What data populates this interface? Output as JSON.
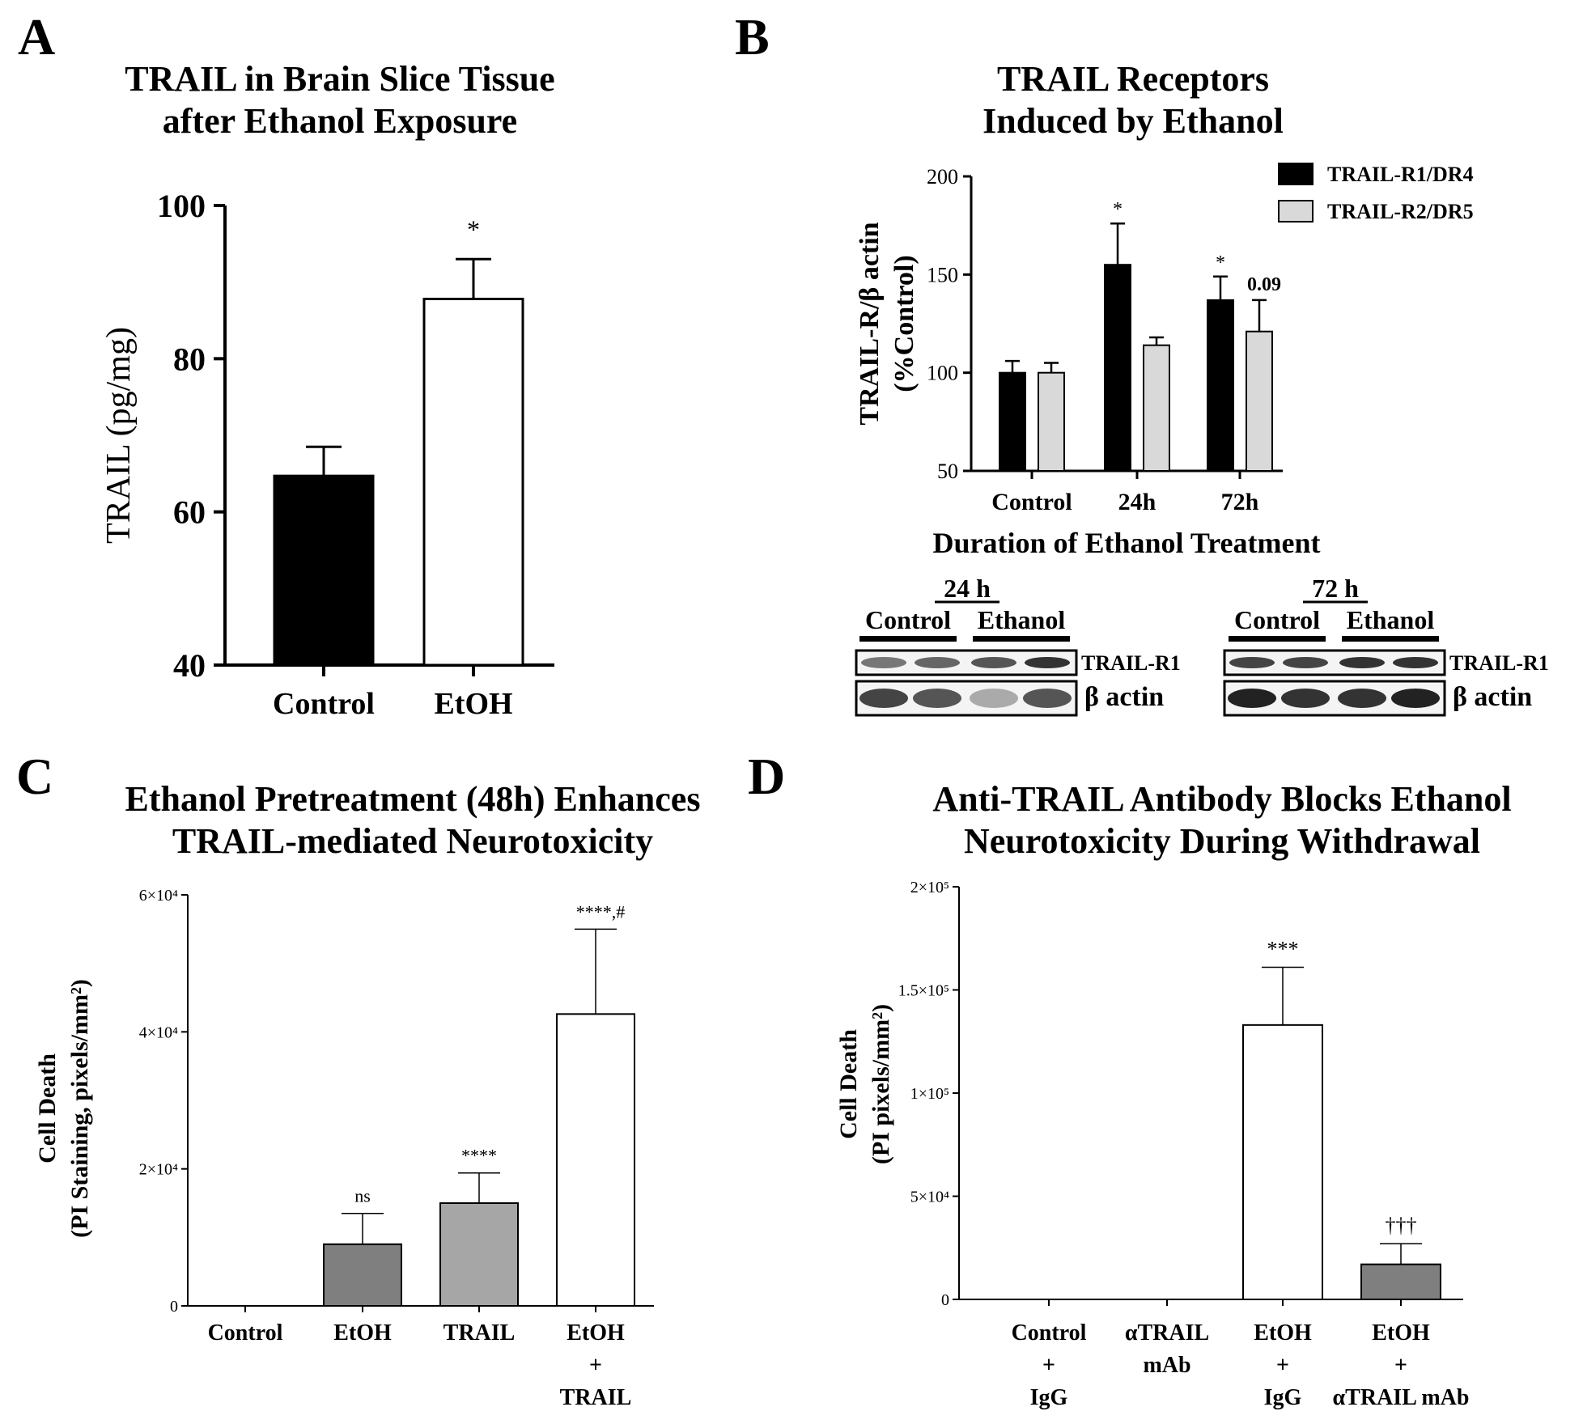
{
  "panels": {
    "A": {
      "label": "A",
      "title_lines": [
        "TRAIL in Brain Slice Tissue",
        "after Ethanol Exposure"
      ],
      "chart_data": {
        "type": "bar",
        "categories": [
          "Control",
          "EtOH"
        ],
        "values": [
          64.7,
          87.8
        ],
        "errors": [
          3.8,
          5.2
        ],
        "colors": [
          "#000000",
          "#ffffff"
        ],
        "annotations": [
          "",
          "*"
        ],
        "ylabel": "TRAIL (pg/mg)",
        "ylim": [
          40,
          100
        ],
        "yticks": [
          40,
          60,
          80,
          100
        ],
        "ytick_labels": [
          "40",
          "60",
          "80",
          "100"
        ]
      }
    },
    "B": {
      "label": "B",
      "title_lines": [
        "TRAIL Receptors",
        "Induced by Ethanol"
      ],
      "chart_data": {
        "type": "bar",
        "categories": [
          "Control",
          "24h",
          "72h"
        ],
        "series": [
          {
            "name": "TRAIL-R1/DR4",
            "color": "#000000",
            "values": [
              100,
              155,
              137
            ],
            "errors": [
              6,
              21,
              12
            ],
            "annotations": [
              "",
              "*",
              "*"
            ]
          },
          {
            "name": "TRAIL-R2/DR5",
            "color": "#d9d9d9",
            "values": [
              100,
              114,
              121
            ],
            "errors": [
              5,
              4,
              16
            ],
            "annotations": [
              "",
              "",
              "0.09"
            ]
          }
        ],
        "ylabel_lines": [
          "TRAIL-R/β actin",
          "(%Control)"
        ],
        "xlabel": "Duration of  Ethanol  Treatment",
        "ylim": [
          50,
          200
        ],
        "yticks": [
          50,
          100,
          150,
          200
        ],
        "ytick_labels": [
          "50",
          "100",
          "150",
          "200"
        ],
        "legend_position": "top-right"
      },
      "blots": {
        "left": {
          "time": "24 h",
          "groups": [
            "Control",
            "Ethanol"
          ],
          "bands": [
            "TRAIL-R1",
            "β actin"
          ]
        },
        "right": {
          "time": "72 h",
          "groups": [
            "Control",
            "Ethanol"
          ],
          "bands": [
            "TRAIL-R1",
            "β actin"
          ]
        }
      }
    },
    "C": {
      "label": "C",
      "title_lines": [
        "Ethanol Pretreatment (48h) Enhances",
        "TRAIL-mediated Neurotoxicity"
      ],
      "chart_data": {
        "type": "bar",
        "categories": [
          [
            "Control"
          ],
          [
            "EtOH"
          ],
          [
            "TRAIL"
          ],
          [
            "EtOH",
            "+",
            "TRAIL"
          ]
        ],
        "values": [
          0,
          9000,
          15000,
          42600
        ],
        "errors": [
          0,
          4500,
          4400,
          12400
        ],
        "colors": [
          "#ffffff",
          "#7f7f7f",
          "#a6a6a6",
          "#ffffff"
        ],
        "annotations": [
          "",
          "ns",
          "****",
          "****,#"
        ],
        "ylabel_lines": [
          "Cell  Death",
          "(PI Staining, pixels/mm²)"
        ],
        "ylim": [
          0,
          60000
        ],
        "yticks": [
          0,
          20000,
          40000,
          60000
        ],
        "ytick_labels": [
          "0",
          "2×10⁴",
          "4×10⁴",
          "6×10⁴"
        ]
      }
    },
    "D": {
      "label": "D",
      "title_lines": [
        "Anti-TRAIL Antibody Blocks Ethanol",
        "Neurotoxicity During Withdrawal"
      ],
      "chart_data": {
        "type": "bar",
        "categories": [
          [
            "Control",
            "+",
            "IgG"
          ],
          [
            "αTRAIL",
            "mAb"
          ],
          [
            "EtOH",
            "+",
            "IgG"
          ],
          [
            "EtOH",
            "+",
            "αTRAIL mAb"
          ]
        ],
        "values": [
          0,
          0,
          133000,
          17000
        ],
        "errors": [
          0,
          0,
          28000,
          10000
        ],
        "colors": [
          "#ffffff",
          "#ffffff",
          "#ffffff",
          "#7f7f7f"
        ],
        "annotations": [
          "",
          "",
          "***",
          "†††"
        ],
        "ylabel_lines": [
          "Cell Death",
          "(PI pixels/mm²)"
        ],
        "ylim": [
          0,
          200000
        ],
        "yticks": [
          0,
          50000,
          100000,
          150000,
          200000
        ],
        "ytick_labels": [
          "0",
          "5×10⁴",
          "1×10⁵",
          "1.5×10⁵",
          "2×10⁵"
        ]
      }
    }
  }
}
